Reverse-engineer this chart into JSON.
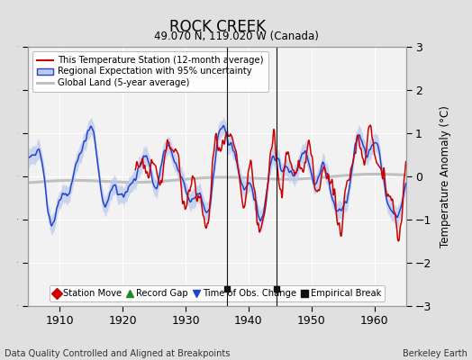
{
  "title": "ROCK CREEK",
  "subtitle": "49.070 N, 119.020 W (Canada)",
  "xlabel_bottom": "Data Quality Controlled and Aligned at Breakpoints",
  "xlabel_right": "Berkeley Earth",
  "ylabel": "Temperature Anomaly (°C)",
  "xlim": [
    1905,
    1965
  ],
  "ylim": [
    -3,
    3
  ],
  "yticks": [
    -3,
    -2,
    -1,
    0,
    1,
    2,
    3
  ],
  "xticks": [
    1910,
    1920,
    1930,
    1940,
    1950,
    1960
  ],
  "bg_color": "#e0e0e0",
  "plot_bg_color": "#f2f2f2",
  "grid_color": "#ffffff",
  "station_color": "#cc0000",
  "regional_color": "#2244cc",
  "regional_fill_color": "#c0ccee",
  "global_color": "#bbbbbb",
  "empirical_break_color": "#111111",
  "legend_items": [
    {
      "label": "This Temperature Station (12-month average)",
      "color": "#cc0000",
      "lw": 1.5
    },
    {
      "label": "Regional Expectation with 95% uncertainty",
      "color": "#2244cc",
      "lw": 1.5
    },
    {
      "label": "Global Land (5-year average)",
      "color": "#bbbbbb",
      "lw": 2.0
    }
  ],
  "marker_items": [
    {
      "label": "Station Move",
      "color": "#cc0000",
      "marker": "D"
    },
    {
      "label": "Record Gap",
      "color": "#228822",
      "marker": "^"
    },
    {
      "label": "Time of Obs. Change",
      "color": "#2244cc",
      "marker": "v"
    },
    {
      "label": "Empirical Break",
      "color": "#111111",
      "marker": "s"
    }
  ],
  "empirical_breaks": [
    1936.5,
    1944.5
  ],
  "station_start": 1922.0,
  "seed": 42
}
